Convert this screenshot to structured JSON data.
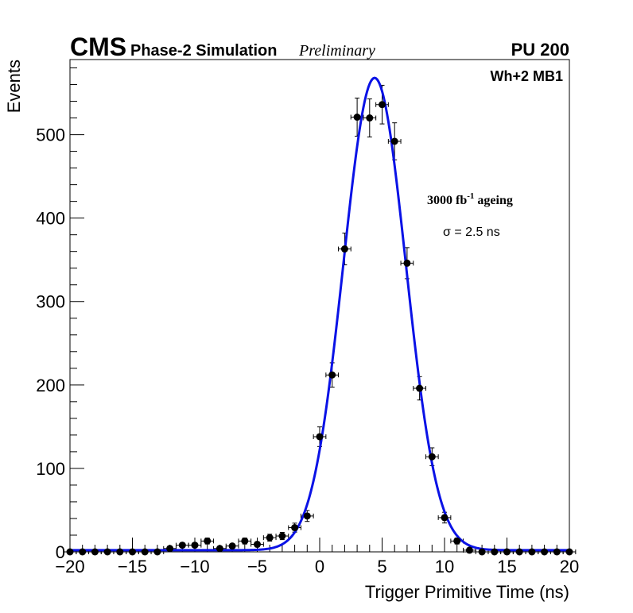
{
  "header": {
    "experiment": "CMS",
    "label": "Phase-2 Simulation",
    "status": "Preliminary",
    "pileup": "PU 200"
  },
  "annotations": {
    "station": "Wh+2 MB1",
    "lumi_value": "3000 fb",
    "lumi_exponent": "-1",
    "lumi_suffix": "ageing",
    "sigma": "σ = 2.5 ns"
  },
  "chart_data": {
    "type": "scatter",
    "xlabel": "Trigger Primitive Time (ns)",
    "ylabel": "Events",
    "xlim": [
      -20,
      20
    ],
    "ylim": [
      0,
      590
    ],
    "xticks": [
      -20,
      -15,
      -10,
      -5,
      0,
      5,
      10,
      15,
      20
    ],
    "xtick_labels": [
      "−20",
      "−15",
      "−10",
      "−5",
      "0",
      "5",
      "10",
      "15",
      "20"
    ],
    "yticks": [
      0,
      100,
      200,
      300,
      400,
      500
    ],
    "ytick_labels": [
      "0",
      "100",
      "200",
      "300",
      "400",
      "500"
    ],
    "grid": false,
    "colors": {
      "fit": "#0a12e6",
      "points": "#000000"
    },
    "series": [
      {
        "kind": "points_with_errors",
        "x": [
          -20,
          -19,
          -18,
          -17,
          -16,
          -15,
          -14,
          -13,
          -12,
          -11,
          -10,
          -9,
          -8,
          -7,
          -6,
          -5,
          -4,
          -3,
          -2,
          -1,
          0,
          1,
          2,
          3,
          4,
          5,
          6,
          7,
          8,
          9,
          10,
          11,
          12,
          13,
          14,
          15,
          16,
          17,
          18,
          19,
          20
        ],
        "y": [
          0,
          0,
          0,
          0,
          0,
          0,
          0,
          0,
          4,
          8,
          8,
          13,
          4,
          7,
          13,
          9,
          17,
          19,
          29,
          43,
          138,
          212,
          363,
          521,
          520,
          536,
          492,
          346,
          196,
          114,
          41,
          13,
          2,
          0,
          0,
          0,
          0,
          0,
          0,
          0,
          0
        ]
      },
      {
        "kind": "fit",
        "amplitude": 566,
        "mean": 4.4,
        "sigma": 2.5,
        "baseline": 2
      }
    ]
  }
}
